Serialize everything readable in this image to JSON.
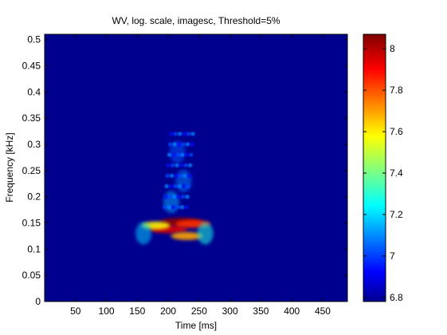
{
  "chart_data": {
    "type": "heatmap",
    "title": "WV, log. scale, imagesc, Threshold=5%",
    "xlabel": "Time [ms]",
    "ylabel": "Frequency [kHz]",
    "xlim": [
      0,
      490
    ],
    "ylim": [
      0,
      0.51
    ],
    "xticks": [
      50,
      100,
      150,
      200,
      250,
      300,
      350,
      400,
      450
    ],
    "yticks": [
      0,
      0.05,
      0.1,
      0.15,
      0.2,
      0.25,
      0.3,
      0.35,
      0.4,
      0.45,
      0.5
    ],
    "colormap": "jet",
    "background_color": "#00008f",
    "colorbar": {
      "range": [
        6.78,
        8.07
      ],
      "ticks": [
        6.8,
        7,
        7.2,
        7.4,
        7.6,
        7.8,
        8
      ]
    },
    "features": [
      {
        "t": 220,
        "f": 0.152,
        "value": 8.05
      },
      {
        "t": 200,
        "f": 0.138,
        "value": 7.95
      },
      {
        "t": 240,
        "f": 0.148,
        "value": 7.85
      },
      {
        "t": 230,
        "f": 0.125,
        "value": 7.7
      },
      {
        "t": 180,
        "f": 0.145,
        "value": 7.6
      },
      {
        "t": 215,
        "f": 0.285,
        "value": 7.05
      },
      {
        "t": 225,
        "f": 0.23,
        "value": 7.1
      },
      {
        "t": 205,
        "f": 0.19,
        "value": 7.15
      },
      {
        "t": 260,
        "f": 0.13,
        "value": 7.3
      },
      {
        "t": 160,
        "f": 0.13,
        "value": 7.2
      }
    ]
  }
}
